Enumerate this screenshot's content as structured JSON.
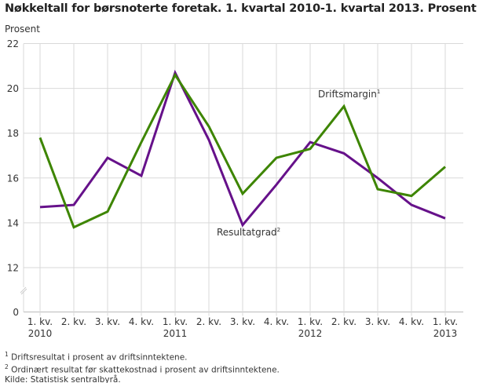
{
  "chart_data": {
    "type": "line",
    "title": "Nøkkeltall for børsnoterte foretak. 1. kvartal 2010-1. kvartal 2013. Prosent",
    "ylabel": "Prosent",
    "xlabel": "",
    "categories": [
      "1. kv. 2010",
      "2. kv.",
      "3. kv.",
      "4. kv.",
      "1. kv. 2011",
      "2. kv.",
      "3. kv.",
      "4. kv.",
      "1. kv. 2012",
      "2. kv.",
      "3. kv.",
      "4. kv.",
      "1. kv. 2013"
    ],
    "tick_labels": [
      {
        "line1": "1. kv.",
        "line2": "2010"
      },
      {
        "line1": "2. kv.",
        "line2": ""
      },
      {
        "line1": "3. kv.",
        "line2": ""
      },
      {
        "line1": "4. kv.",
        "line2": ""
      },
      {
        "line1": "1. kv.",
        "line2": "2011"
      },
      {
        "line1": "2. kv.",
        "line2": ""
      },
      {
        "line1": "3. kv.",
        "line2": ""
      },
      {
        "line1": "4. kv.",
        "line2": ""
      },
      {
        "line1": "1. kv.",
        "line2": "2012"
      },
      {
        "line1": "2. kv.",
        "line2": ""
      },
      {
        "line1": "3. kv.",
        "line2": ""
      },
      {
        "line1": "4. kv.",
        "line2": ""
      },
      {
        "line1": "1. kv.",
        "line2": "2013"
      }
    ],
    "yticks": [
      0,
      12,
      14,
      16,
      18,
      20,
      22
    ],
    "ylim": [
      0,
      22
    ],
    "axis_break": [
      0,
      12
    ],
    "grid": true,
    "series": [
      {
        "name": "Driftsmargin",
        "sup": "1",
        "color": "#3d8500",
        "values": [
          17.8,
          13.8,
          14.5,
          17.6,
          20.6,
          18.3,
          15.3,
          16.9,
          17.3,
          19.2,
          15.5,
          15.2,
          16.5
        ]
      },
      {
        "name": "Resultatgrad",
        "sup": "2",
        "color": "#66118a",
        "values": [
          14.7,
          14.8,
          16.9,
          16.1,
          20.7,
          17.7,
          13.9,
          15.7,
          17.6,
          17.1,
          16.0,
          14.8,
          14.2
        ]
      }
    ]
  },
  "footnotes": {
    "note1": "Driftsresultat i prosent av driftsinntektene.",
    "note2": "Ordinært resultat før skattekostnad i prosent av driftsinntektene.",
    "source": "Kilde: Statistisk sentralbyrå.",
    "sup1": "1",
    "sup2": "2"
  }
}
